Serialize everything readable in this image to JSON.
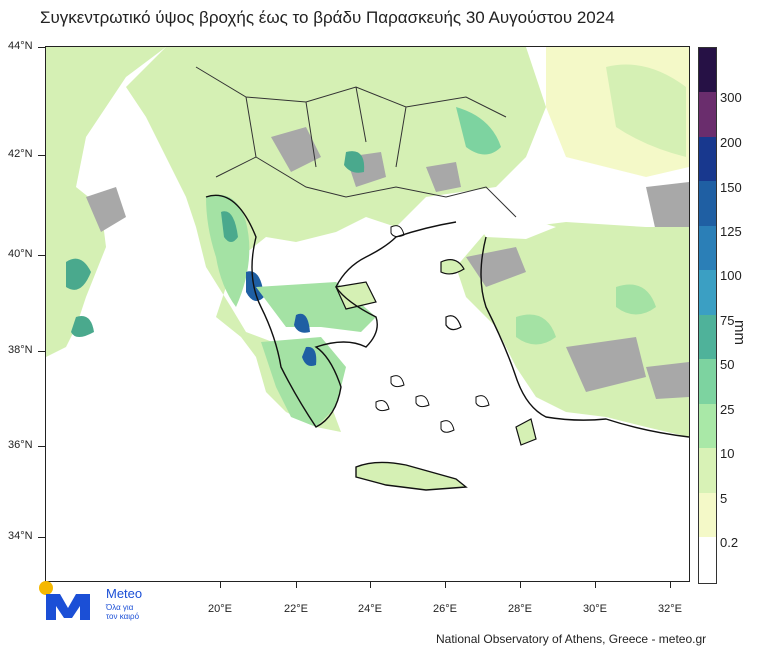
{
  "title": "Συγκεντρωτικό ύψος βροχής έως το βράδυ Παρασκευής 30 Αυγούστου 2024",
  "latitude_labels": [
    "44°N",
    "42°N",
    "40°N",
    "38°N",
    "36°N",
    "34°N"
  ],
  "longitude_labels": [
    "20°E",
    "22°E",
    "24°E",
    "26°E",
    "28°E",
    "30°E",
    "32°E"
  ],
  "legend": {
    "unit": "mm",
    "levels": [
      "0.2",
      "5",
      "10",
      "25",
      "50",
      "75",
      "100",
      "125",
      "150",
      "200",
      "300"
    ],
    "colors": [
      "#ffffff",
      "#f4f9c8",
      "#d8f2b6",
      "#a9e8a7",
      "#7dd3a0",
      "#4fb29a",
      "#3b9fc3",
      "#2b7fb7",
      "#1f5fa3",
      "#18388e",
      "#6a2d6d",
      "#261145"
    ]
  },
  "map_colors": {
    "no_rain": "#ffffff",
    "no_data": "#a8a8a8",
    "light": "#d5f0b4",
    "moderate": "#a4e2a4",
    "heavy": "#4aa98d",
    "very_heavy": "#1f5fa3"
  },
  "logo": {
    "brand": "Meteo",
    "tagline_line1": "Όλα για",
    "tagline_line2": "τον καιρό"
  },
  "credit": "National Observatory of Athens, Greece - meteo.gr"
}
